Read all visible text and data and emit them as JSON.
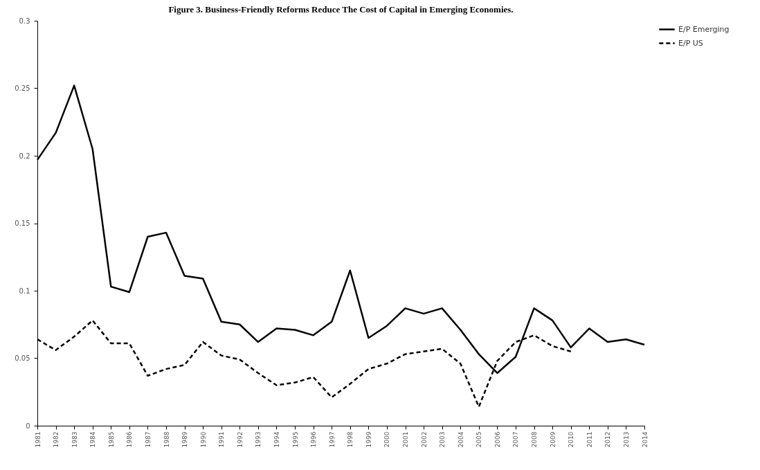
{
  "chart_data": {
    "type": "line",
    "title": "Figure 3. Business-Friendly Reforms Reduce The Cost of Capital in Emerging Economies.",
    "categories": [
      "1981",
      "1982",
      "1983",
      "1984",
      "1985",
      "1986",
      "1987",
      "1988",
      "1989",
      "1990",
      "1991",
      "1992",
      "1993",
      "1994",
      "1995",
      "1996",
      "1997",
      "1998",
      "1999",
      "2000",
      "2001",
      "2002",
      "2003",
      "2004",
      "2005",
      "2006",
      "2007",
      "2008",
      "2009",
      "2010",
      "2011",
      "2012",
      "2013",
      "2014"
    ],
    "series": [
      {
        "name": "E/P Emerging",
        "color": "#000000",
        "line_style": "solid",
        "values": [
          0.197,
          0.217,
          0.252,
          0.205,
          0.103,
          0.099,
          0.14,
          0.143,
          0.111,
          0.109,
          0.077,
          0.075,
          0.062,
          0.072,
          0.071,
          0.067,
          0.077,
          0.115,
          0.065,
          0.074,
          0.087,
          0.083,
          0.087,
          0.071,
          0.053,
          0.039,
          0.051,
          0.087,
          0.078,
          0.058,
          0.072,
          0.062,
          0.064,
          0.06
        ]
      },
      {
        "name": "E/P US",
        "color": "#000000",
        "line_style": "dashed",
        "values": [
          0.064,
          0.056,
          0.066,
          0.078,
          0.061,
          0.061,
          0.037,
          0.042,
          0.045,
          0.062,
          0.052,
          0.049,
          0.039,
          0.03,
          0.032,
          0.036,
          0.021,
          0.031,
          0.042,
          0.046,
          0.053,
          0.055,
          0.057,
          0.046,
          0.014,
          0.048,
          0.062,
          0.067,
          0.059,
          0.055,
          null,
          null,
          null,
          null
        ]
      }
    ],
    "ylim": [
      0,
      0.3
    ],
    "yticks": [
      0,
      0.05,
      0.1,
      0.15,
      0.2,
      0.25,
      0.3
    ],
    "grid": false,
    "legend": "right"
  }
}
